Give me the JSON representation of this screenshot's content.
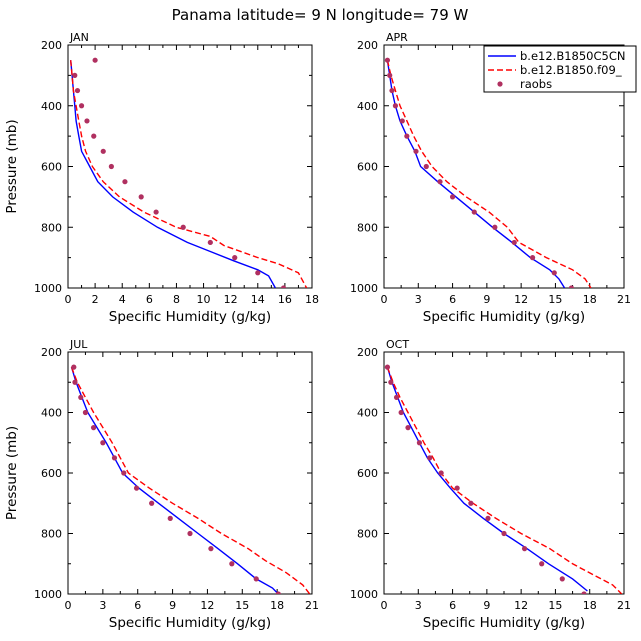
{
  "title": "Panama  latitude= 9 N longitude= 79 W",
  "colors": {
    "model1": "#0000ff",
    "model2": "#ff0000",
    "obs": "#b03060"
  },
  "chart_data": [
    {
      "type": "line",
      "panel": "JAN",
      "xlabel": "Specific Humidity (g/kg)",
      "ylabel": "Pressure (mb)",
      "xlim": [
        0,
        18
      ],
      "ylim": [
        200,
        1000
      ],
      "y_inverted": true,
      "xticks": [
        0,
        2,
        4,
        6,
        8,
        10,
        12,
        14,
        16,
        18
      ],
      "yticks": [
        200,
        400,
        600,
        800,
        1000
      ],
      "series": [
        {
          "name": "b.e12.B1850C5CN",
          "style": "solid",
          "color": "#0000ff",
          "points": [
            [
              0.2,
              250
            ],
            [
              0.3,
              300
            ],
            [
              0.4,
              350
            ],
            [
              0.5,
              400
            ],
            [
              0.6,
              450
            ],
            [
              0.8,
              500
            ],
            [
              1.0,
              550
            ],
            [
              1.6,
              600
            ],
            [
              2.2,
              650
            ],
            [
              3.3,
              700
            ],
            [
              4.8,
              750
            ],
            [
              6.6,
              800
            ],
            [
              8.8,
              850
            ],
            [
              10.5,
              880
            ],
            [
              12.2,
              910
            ],
            [
              14.0,
              940
            ],
            [
              14.8,
              960
            ],
            [
              15.3,
              1000
            ]
          ]
        },
        {
          "name": "b.e12.B1850.f09_",
          "style": "dashed",
          "color": "#ff0000",
          "points": [
            [
              0.2,
              250
            ],
            [
              0.3,
              300
            ],
            [
              0.4,
              350
            ],
            [
              0.6,
              400
            ],
            [
              0.8,
              450
            ],
            [
              1.0,
              500
            ],
            [
              1.3,
              550
            ],
            [
              1.8,
              600
            ],
            [
              2.6,
              650
            ],
            [
              3.8,
              700
            ],
            [
              5.6,
              750
            ],
            [
              8.0,
              800
            ],
            [
              10.5,
              830
            ],
            [
              11.5,
              860
            ],
            [
              14.0,
              900
            ],
            [
              15.5,
              920
            ],
            [
              17.0,
              950
            ],
            [
              17.6,
              1000
            ]
          ]
        }
      ],
      "obs": {
        "name": "raobs",
        "points": [
          [
            2.0,
            250
          ],
          [
            0.5,
            300
          ],
          [
            0.7,
            350
          ],
          [
            1.0,
            400
          ],
          [
            1.4,
            450
          ],
          [
            1.9,
            500
          ],
          [
            2.6,
            550
          ],
          [
            3.2,
            600
          ],
          [
            4.2,
            650
          ],
          [
            5.4,
            700
          ],
          [
            6.5,
            750
          ],
          [
            8.5,
            800
          ],
          [
            10.5,
            850
          ],
          [
            12.3,
            900
          ],
          [
            14.0,
            950
          ],
          [
            15.9,
            1000
          ]
        ]
      }
    },
    {
      "type": "line",
      "panel": "APR",
      "xlabel": "Specific Humidity (g/kg)",
      "ylabel": "",
      "xlim": [
        0,
        21
      ],
      "ylim": [
        200,
        1000
      ],
      "y_inverted": true,
      "xticks": [
        0,
        3,
        6,
        9,
        12,
        15,
        18,
        21
      ],
      "yticks": [
        200,
        400,
        600,
        800,
        1000
      ],
      "series": [
        {
          "name": "b.e12.B1850C5CN",
          "style": "solid",
          "color": "#0000ff",
          "points": [
            [
              0.3,
              250
            ],
            [
              0.5,
              300
            ],
            [
              0.7,
              350
            ],
            [
              1.0,
              400
            ],
            [
              1.4,
              450
            ],
            [
              2.0,
              500
            ],
            [
              2.7,
              550
            ],
            [
              3.2,
              600
            ],
            [
              4.7,
              650
            ],
            [
              6.3,
              700
            ],
            [
              7.9,
              750
            ],
            [
              9.5,
              800
            ],
            [
              11.2,
              850
            ],
            [
              12.8,
              900
            ],
            [
              14.5,
              940
            ],
            [
              15.3,
              970
            ],
            [
              15.8,
              1000
            ]
          ]
        },
        {
          "name": "b.e12.B1850.f09_",
          "style": "dashed",
          "color": "#ff0000",
          "points": [
            [
              0.3,
              250
            ],
            [
              0.6,
              300
            ],
            [
              1.0,
              350
            ],
            [
              1.4,
              400
            ],
            [
              2.0,
              450
            ],
            [
              2.6,
              500
            ],
            [
              3.3,
              550
            ],
            [
              4.2,
              600
            ],
            [
              5.5,
              650
            ],
            [
              7.2,
              700
            ],
            [
              9.2,
              750
            ],
            [
              10.8,
              800
            ],
            [
              11.8,
              850
            ],
            [
              14.2,
              900
            ],
            [
              16.5,
              940
            ],
            [
              17.6,
              970
            ],
            [
              18.1,
              1000
            ]
          ]
        }
      ],
      "obs": {
        "name": "raobs",
        "points": [
          [
            0.3,
            250
          ],
          [
            0.5,
            300
          ],
          [
            0.7,
            350
          ],
          [
            1.0,
            400
          ],
          [
            1.6,
            450
          ],
          [
            2.0,
            500
          ],
          [
            2.8,
            550
          ],
          [
            3.7,
            600
          ],
          [
            4.9,
            650
          ],
          [
            6.0,
            700
          ],
          [
            7.9,
            750
          ],
          [
            9.7,
            800
          ],
          [
            11.4,
            850
          ],
          [
            13.0,
            900
          ],
          [
            14.9,
            950
          ],
          [
            16.4,
            1000
          ]
        ]
      }
    },
    {
      "type": "line",
      "panel": "JUL",
      "xlabel": "Specific Humidity (g/kg)",
      "ylabel": "Pressure (mb)",
      "xlim": [
        0,
        21
      ],
      "ylim": [
        200,
        1000
      ],
      "y_inverted": true,
      "xticks": [
        0,
        3,
        6,
        9,
        12,
        15,
        18,
        21
      ],
      "yticks": [
        200,
        400,
        600,
        800,
        1000
      ],
      "series": [
        {
          "name": "b.e12.B1850C5CN",
          "style": "solid",
          "color": "#0000ff",
          "points": [
            [
              0.3,
              250
            ],
            [
              0.7,
              300
            ],
            [
              1.2,
              350
            ],
            [
              1.7,
              400
            ],
            [
              2.5,
              450
            ],
            [
              3.3,
              500
            ],
            [
              4.0,
              550
            ],
            [
              4.7,
              600
            ],
            [
              6.1,
              650
            ],
            [
              7.8,
              700
            ],
            [
              9.5,
              750
            ],
            [
              11.2,
              800
            ],
            [
              12.9,
              850
            ],
            [
              14.6,
              900
            ],
            [
              16.2,
              950
            ],
            [
              17.6,
              980
            ],
            [
              18.1,
              1000
            ]
          ]
        },
        {
          "name": "b.e12.B1850.f09_",
          "style": "dashed",
          "color": "#ff0000",
          "points": [
            [
              0.3,
              250
            ],
            [
              0.8,
              300
            ],
            [
              1.5,
              350
            ],
            [
              2.2,
              400
            ],
            [
              3.0,
              450
            ],
            [
              3.8,
              500
            ],
            [
              4.5,
              550
            ],
            [
              5.2,
              600
            ],
            [
              7.0,
              650
            ],
            [
              9.0,
              700
            ],
            [
              11.2,
              750
            ],
            [
              13.2,
              800
            ],
            [
              15.5,
              850
            ],
            [
              17.0,
              890
            ],
            [
              18.8,
              930
            ],
            [
              20.2,
              970
            ],
            [
              20.8,
              1000
            ]
          ]
        }
      ],
      "obs": {
        "name": "raobs",
        "points": [
          [
            0.5,
            250
          ],
          [
            0.6,
            300
          ],
          [
            1.1,
            350
          ],
          [
            1.5,
            400
          ],
          [
            2.2,
            450
          ],
          [
            3.0,
            500
          ],
          [
            4.0,
            550
          ],
          [
            4.8,
            600
          ],
          [
            5.9,
            650
          ],
          [
            7.2,
            700
          ],
          [
            8.8,
            750
          ],
          [
            10.5,
            800
          ],
          [
            12.3,
            850
          ],
          [
            14.1,
            900
          ],
          [
            16.2,
            950
          ],
          [
            18.1,
            1000
          ]
        ]
      }
    },
    {
      "type": "line",
      "panel": "OCT",
      "xlabel": "Specific Humidity (g/kg)",
      "ylabel": "",
      "xlim": [
        0,
        21
      ],
      "ylim": [
        200,
        1000
      ],
      "y_inverted": true,
      "xticks": [
        0,
        3,
        6,
        9,
        12,
        15,
        18,
        21
      ],
      "yticks": [
        200,
        400,
        600,
        800,
        1000
      ],
      "series": [
        {
          "name": "b.e12.B1850C5CN",
          "style": "solid",
          "color": "#0000ff",
          "points": [
            [
              0.3,
              250
            ],
            [
              0.7,
              300
            ],
            [
              1.2,
              350
            ],
            [
              1.7,
              400
            ],
            [
              2.4,
              450
            ],
            [
              3.1,
              500
            ],
            [
              3.8,
              550
            ],
            [
              4.7,
              600
            ],
            [
              5.8,
              650
            ],
            [
              7.0,
              700
            ],
            [
              8.7,
              750
            ],
            [
              10.5,
              800
            ],
            [
              12.5,
              850
            ],
            [
              14.4,
              900
            ],
            [
              16.5,
              950
            ],
            [
              17.8,
              990
            ]
          ]
        },
        {
          "name": "b.e12.B1850.f09_",
          "style": "dashed",
          "color": "#ff0000",
          "points": [
            [
              0.3,
              250
            ],
            [
              0.8,
              300
            ],
            [
              1.4,
              350
            ],
            [
              2.1,
              400
            ],
            [
              2.8,
              450
            ],
            [
              3.5,
              500
            ],
            [
              4.3,
              550
            ],
            [
              5.0,
              600
            ],
            [
              6.0,
              650
            ],
            [
              7.8,
              700
            ],
            [
              9.8,
              750
            ],
            [
              12.0,
              800
            ],
            [
              14.5,
              850
            ],
            [
              16.5,
              900
            ],
            [
              18.5,
              940
            ],
            [
              20.0,
              970
            ],
            [
              20.8,
              1000
            ]
          ]
        }
      ],
      "obs": {
        "name": "raobs",
        "points": [
          [
            0.3,
            250
          ],
          [
            0.6,
            300
          ],
          [
            1.1,
            350
          ],
          [
            1.5,
            400
          ],
          [
            2.1,
            450
          ],
          [
            3.1,
            500
          ],
          [
            4.0,
            550
          ],
          [
            5.0,
            600
          ],
          [
            6.4,
            650
          ],
          [
            7.6,
            700
          ],
          [
            9.1,
            750
          ],
          [
            10.5,
            800
          ],
          [
            12.3,
            850
          ],
          [
            13.8,
            900
          ],
          [
            15.6,
            950
          ],
          [
            17.5,
            1000
          ]
        ]
      }
    }
  ],
  "legend": {
    "items": [
      {
        "label": "b.e12.B1850C5CN",
        "style": "solid",
        "color": "#0000ff"
      },
      {
        "label": "b.e12.B1850.f09_",
        "style": "dashed",
        "color": "#ff0000"
      },
      {
        "label": "raobs",
        "style": "dot",
        "color": "#b03060"
      }
    ]
  }
}
